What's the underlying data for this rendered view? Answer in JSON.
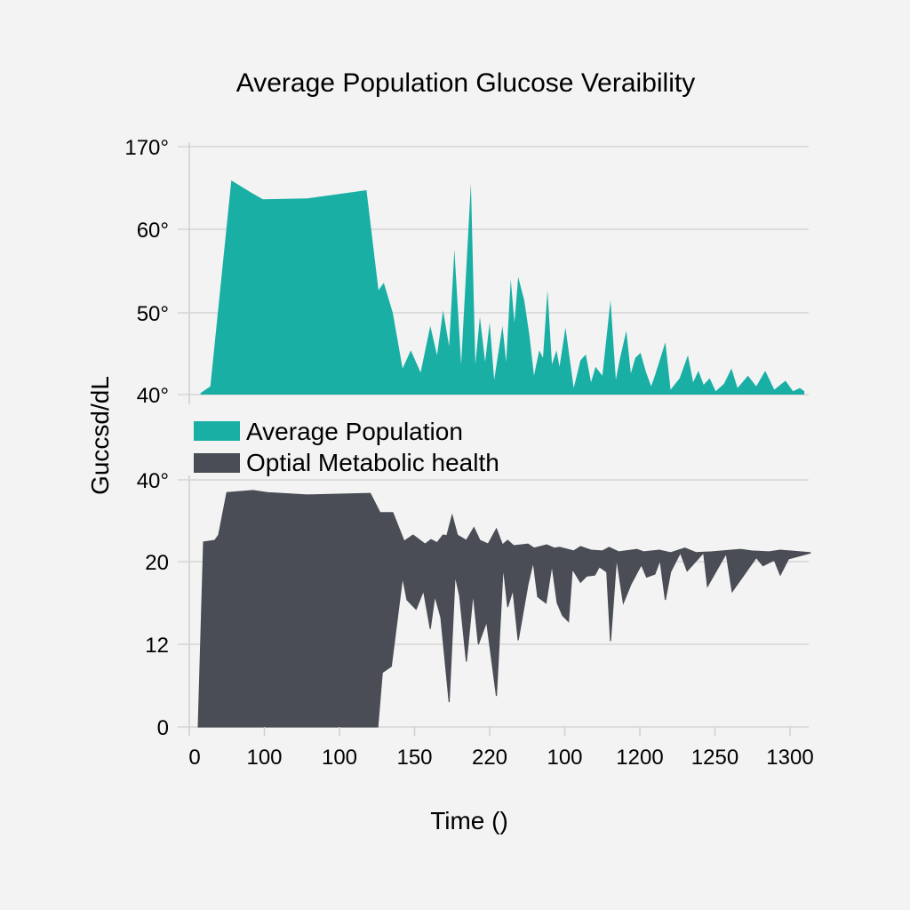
{
  "chart_data": {
    "type": "area",
    "title": "Average Population Glucose Veraibility",
    "xlabel": "Time ()",
    "ylabel": "Guccsd/dL",
    "x_tick_labels": [
      "0",
      "100",
      "100",
      "150",
      "220",
      "100",
      "1200",
      "1250",
      "1300"
    ],
    "x_units_note": "x values are expressed in tick-index units (0 = first tick label, 8 = last tick label) because the printed tick labels are non-monotonic",
    "grid": true,
    "legend": {
      "placement": "center-left",
      "entries": [
        {
          "label": "Average Population",
          "color": "#1aafa5"
        },
        {
          "label": "Optial Metabolic health",
          "color": "#4a4d55"
        }
      ]
    },
    "panels": [
      {
        "y_tick_labels": [
          "40°",
          "50°",
          "60°",
          "170°"
        ],
        "y_tick_values": [
          40,
          50,
          60,
          170
        ],
        "series": [
          {
            "name": "Average Population",
            "color": "#1aafa5",
            "points": [
              [
                0.15,
                40.2
              ],
              [
                0.28,
                41
              ],
              [
                0.56,
                125
              ],
              [
                0.83,
                108.5
              ],
              [
                0.98,
                100
              ],
              [
                1.57,
                101
              ],
              [
                2.36,
                112
              ],
              [
                2.52,
                52.7
              ],
              [
                2.59,
                53.6
              ],
              [
                2.71,
                50
              ],
              [
                2.84,
                43.2
              ],
              [
                2.95,
                45.4
              ],
              [
                3.08,
                42.7
              ],
              [
                3.21,
                48.4
              ],
              [
                3.3,
                44.8
              ],
              [
                3.38,
                50.3
              ],
              [
                3.46,
                45.9
              ],
              [
                3.53,
                57.6
              ],
              [
                3.62,
                43.7
              ],
              [
                3.75,
                121.5
              ],
              [
                3.81,
                43.7
              ],
              [
                3.87,
                49.5
              ],
              [
                3.94,
                44
              ],
              [
                4.0,
                48.8
              ],
              [
                4.06,
                41.8
              ],
              [
                4.17,
                48.4
              ],
              [
                4.22,
                44
              ],
              [
                4.28,
                54
              ],
              [
                4.33,
                48.8
              ],
              [
                4.38,
                54.3
              ],
              [
                4.46,
                51.5
              ],
              [
                4.53,
                47.2
              ],
              [
                4.59,
                42.3
              ],
              [
                4.66,
                45.4
              ],
              [
                4.71,
                44.5
              ],
              [
                4.77,
                52.7
              ],
              [
                4.83,
                43.7
              ],
              [
                4.89,
                45.4
              ],
              [
                4.93,
                43.4
              ],
              [
                5.01,
                48.2
              ],
              [
                5.12,
                40.8
              ],
              [
                5.21,
                44.2
              ],
              [
                5.28,
                44.9
              ],
              [
                5.35,
                41.5
              ],
              [
                5.41,
                43.4
              ],
              [
                5.5,
                42.3
              ],
              [
                5.61,
                51.5
              ],
              [
                5.68,
                41.8
              ],
              [
                5.73,
                44.2
              ],
              [
                5.82,
                47.8
              ],
              [
                5.88,
                42.6
              ],
              [
                5.94,
                44.5
              ],
              [
                6.01,
                45.1
              ],
              [
                6.08,
                42.8
              ],
              [
                6.15,
                41
              ],
              [
                6.2,
                42.3
              ],
              [
                6.34,
                46.4
              ],
              [
                6.41,
                40.6
              ],
              [
                6.53,
                42
              ],
              [
                6.64,
                44.8
              ],
              [
                6.71,
                41.5
              ],
              [
                6.78,
                42.9
              ],
              [
                6.85,
                41.2
              ],
              [
                6.93,
                42
              ],
              [
                7.01,
                40.4
              ],
              [
                7.12,
                41.3
              ],
              [
                7.22,
                43.2
              ],
              [
                7.3,
                40.8
              ],
              [
                7.44,
                42.3
              ],
              [
                7.55,
                41
              ],
              [
                7.67,
                42.9
              ],
              [
                7.79,
                40.6
              ],
              [
                7.94,
                41.7
              ],
              [
                8.04,
                40.4
              ],
              [
                8.13,
                40.8
              ],
              [
                8.19,
                40.4
              ]
            ]
          }
        ]
      },
      {
        "y_tick_labels": [
          "0",
          "12",
          "20",
          "40°"
        ],
        "y_tick_values": [
          0,
          12,
          20,
          40
        ],
        "series": [
          {
            "name": "Optial Metabolic health",
            "color": "#4a4d55",
            "upper": [
              [
                0.12,
                0
              ],
              [
                0.19,
                24.8
              ],
              [
                0.34,
                25.2
              ],
              [
                0.39,
                26.5
              ],
              [
                0.5,
                36.9
              ],
              [
                0.85,
                37.4
              ],
              [
                1.04,
                36.9
              ],
              [
                1.57,
                36.3
              ],
              [
                2.41,
                36.7
              ],
              [
                2.54,
                32
              ],
              [
                2.71,
                32
              ],
              [
                2.86,
                25
              ],
              [
                2.98,
                26.5
              ],
              [
                3.14,
                24.3
              ],
              [
                3.22,
                25.4
              ],
              [
                3.3,
                24.6
              ],
              [
                3.38,
                26.5
              ],
              [
                3.43,
                26.3
              ],
              [
                3.5,
                31.3
              ],
              [
                3.57,
                26.5
              ],
              [
                3.69,
                25.2
              ],
              [
                3.79,
                28.3
              ],
              [
                3.87,
                25.2
              ],
              [
                3.98,
                24.3
              ],
              [
                4.09,
                28
              ],
              [
                4.17,
                24.1
              ],
              [
                4.24,
                25.2
              ],
              [
                4.32,
                23.9
              ],
              [
                4.51,
                24.3
              ],
              [
                4.59,
                23.3
              ],
              [
                4.76,
                24.1
              ],
              [
                4.86,
                23.3
              ],
              [
                4.93,
                23.5
              ],
              [
                5.12,
                22.6
              ],
              [
                5.21,
                23.7
              ],
              [
                5.35,
                22.8
              ],
              [
                5.5,
                22.6
              ],
              [
                5.59,
                23.5
              ],
              [
                5.72,
                22.4
              ],
              [
                5.96,
                23
              ],
              [
                6.05,
                22.4
              ],
              [
                6.26,
                22.8
              ],
              [
                6.41,
                22.2
              ],
              [
                6.6,
                23.3
              ],
              [
                6.75,
                22.2
              ],
              [
                6.96,
                22.4
              ],
              [
                7.34,
                23
              ],
              [
                7.49,
                22.6
              ],
              [
                7.72,
                22.4
              ],
              [
                7.87,
                22.8
              ],
              [
                8.27,
                22.2
              ]
            ],
            "lower": [
              [
                0.12,
                0
              ],
              [
                2.51,
                0
              ],
              [
                2.57,
                7.9
              ],
              [
                2.69,
                8.8
              ],
              [
                2.84,
                18.5
              ],
              [
                2.9,
                16.3
              ],
              [
                3.02,
                15.4
              ],
              [
                3.12,
                17.2
              ],
              [
                3.21,
                13.5
              ],
              [
                3.27,
                16.7
              ],
              [
                3.35,
                14.6
              ],
              [
                3.46,
                3.6
              ],
              [
                3.54,
                18.7
              ],
              [
                3.6,
                16.7
              ],
              [
                3.69,
                9.5
              ],
              [
                3.78,
                17
              ],
              [
                3.85,
                12
              ],
              [
                3.96,
                14.2
              ],
              [
                4.09,
                4.5
              ],
              [
                4.18,
                19.6
              ],
              [
                4.24,
                15.6
              ],
              [
                4.31,
                17.3
              ],
              [
                4.38,
                12.4
              ],
              [
                4.51,
                17.8
              ],
              [
                4.58,
                20
              ],
              [
                4.64,
                16.6
              ],
              [
                4.75,
                16
              ],
              [
                4.83,
                19.7
              ],
              [
                4.9,
                16
              ],
              [
                4.97,
                14.8
              ],
              [
                5.05,
                14.2
              ],
              [
                5.1,
                19.3
              ],
              [
                5.21,
                18
              ],
              [
                5.29,
                18.6
              ],
              [
                5.4,
                18.7
              ],
              [
                5.46,
                19.5
              ],
              [
                5.56,
                19
              ],
              [
                5.61,
                12.3
              ],
              [
                5.69,
                21
              ],
              [
                5.78,
                16
              ],
              [
                5.88,
                17.8
              ],
              [
                6.02,
                19.7
              ],
              [
                6.09,
                18.5
              ],
              [
                6.2,
                18.8
              ],
              [
                6.27,
                20.4
              ],
              [
                6.34,
                16.3
              ],
              [
                6.41,
                19
              ],
              [
                6.54,
                22.2
              ],
              [
                6.63,
                19.1
              ],
              [
                6.85,
                22.2
              ],
              [
                6.9,
                17.6
              ],
              [
                7.15,
                22
              ],
              [
                7.23,
                17.1
              ],
              [
                7.55,
                21
              ],
              [
                7.64,
                19.6
              ],
              [
                7.79,
                20.4
              ],
              [
                7.87,
                18.7
              ],
              [
                7.98,
                20.7
              ],
              [
                8.27,
                22.1
              ]
            ]
          }
        ]
      }
    ]
  }
}
